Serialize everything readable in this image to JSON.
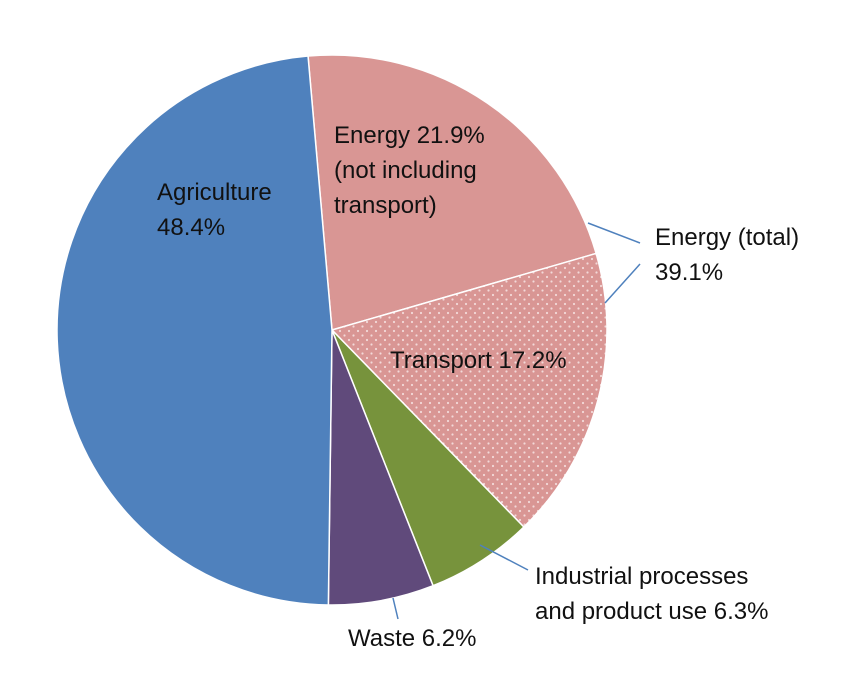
{
  "chart_data": {
    "type": "pie",
    "slices": [
      {
        "name": "Energy 21.9% (not including transport)",
        "label_lines": [
          "Energy 21.9%",
          "(not including",
          "transport)"
        ],
        "value": 21.9,
        "color": "#D99694",
        "pattern": "none"
      },
      {
        "name": "Transport 17.2%",
        "label_lines": [
          "Transport 17.2%"
        ],
        "value": 17.2,
        "color": "#D99694",
        "pattern": "dots"
      },
      {
        "name": "Industrial processes and product use 6.3%",
        "label_lines": [
          "Industrial processes",
          "and product use  6.3%"
        ],
        "value": 6.3,
        "color": "#77933C",
        "pattern": "none"
      },
      {
        "name": "Waste 6.2%",
        "label_lines": [
          "Waste 6.2%"
        ],
        "value": 6.2,
        "color": "#604A7B",
        "pattern": "none"
      },
      {
        "name": "Agriculture 48.4%",
        "label_lines": [
          "Agriculture",
          "48.4%"
        ],
        "value": 48.4,
        "color": "#4F81BD",
        "pattern": "none"
      }
    ],
    "annotations": [
      {
        "name": "Energy (total) 39.1%",
        "label_lines": [
          "Energy (total)",
          "39.1%"
        ],
        "value": 39.1,
        "covers": [
          "Energy 21.9% (not including transport)",
          "Transport 17.2%"
        ]
      }
    ],
    "leader_line_color": "#4F81BD"
  }
}
